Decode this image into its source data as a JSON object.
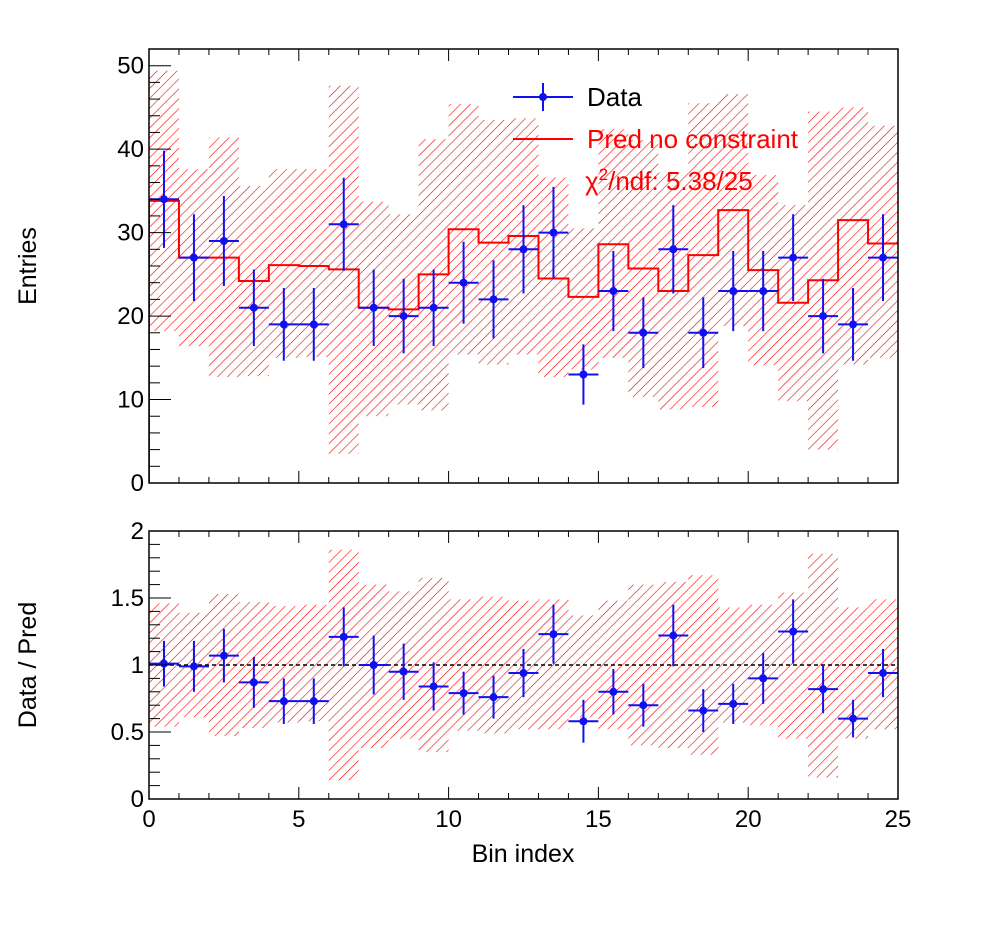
{
  "colors": {
    "data": "#1010f0",
    "pred": "#ff0000",
    "frame": "#000000",
    "ref_line": "#000000"
  },
  "legend": {
    "data_label": "Data",
    "pred_label": "Pred no constraint",
    "chi2_symbol": "χ",
    "chi2_sup": "2",
    "chi2_text": "/ndf: 5.38/25"
  },
  "chart_data": [
    {
      "type": "line",
      "xlabel": "",
      "ylabel": "Entries",
      "xlim": [
        0,
        25
      ],
      "ylim": [
        0,
        52
      ],
      "x_ticks": [
        0,
        5,
        10,
        15,
        20,
        25
      ],
      "y_ticks": [
        0,
        10,
        20,
        30,
        40,
        50
      ],
      "y_tick_labels": [
        "0",
        "10",
        "20",
        "30",
        "40",
        "50"
      ],
      "grid": false,
      "legend_position": "top-right",
      "series": [
        {
          "name": "Data",
          "style": "points with error bars",
          "x": [
            0.5,
            1.5,
            2.5,
            3.5,
            4.5,
            5.5,
            6.5,
            7.5,
            8.5,
            9.5,
            10.5,
            11.5,
            12.5,
            13.5,
            14.5,
            15.5,
            16.5,
            17.5,
            18.5,
            19.5,
            20.5,
            21.5,
            22.5,
            23.5,
            24.5
          ],
          "y": [
            34,
            27,
            29,
            21,
            19,
            19,
            31,
            21,
            20,
            21,
            24,
            22,
            28,
            30,
            13,
            23,
            18,
            28,
            18,
            23,
            23,
            27,
            20,
            19,
            27
          ],
          "yerr": [
            5.83,
            5.2,
            5.39,
            4.58,
            4.36,
            4.36,
            5.57,
            4.58,
            4.47,
            4.58,
            4.9,
            4.69,
            5.29,
            5.48,
            3.61,
            4.8,
            4.24,
            5.29,
            4.24,
            4.8,
            4.8,
            5.2,
            4.47,
            4.36,
            5.2
          ]
        },
        {
          "name": "Pred no constraint",
          "style": "step histogram with hatched band",
          "bin_edges": [
            0,
            1,
            2,
            3,
            4,
            5,
            6,
            7,
            8,
            9,
            10,
            11,
            12,
            13,
            14,
            15,
            16,
            17,
            18,
            19,
            20,
            21,
            22,
            23,
            24,
            25
          ],
          "values": [
            33.8,
            27,
            27,
            24.2,
            26.1,
            26,
            25.6,
            21,
            20.8,
            25,
            30.4,
            28.8,
            29.6,
            24.5,
            22.3,
            28.6,
            25.7,
            23,
            27.3,
            32.7,
            25.5,
            21.6,
            24.3,
            31.5,
            28.7
          ],
          "band_low": [
            18.2,
            16.4,
            12.7,
            12.8,
            15,
            15.1,
            3.5,
            8,
            9.4,
            8.7,
            15.4,
            14.2,
            15.4,
            12.7,
            13.6,
            15,
            10.3,
            8.8,
            9.1,
            18.8,
            14.1,
            9.8,
            4,
            14.2,
            15
          ],
          "band_high": [
            49.4,
            37.6,
            41.4,
            35.6,
            37.6,
            37.6,
            47.6,
            33.7,
            32.2,
            41.2,
            45.4,
            43.5,
            43.7,
            36.6,
            30.5,
            42.4,
            41.1,
            37.2,
            45.5,
            46.6,
            36.9,
            33.3,
            44.5,
            45,
            42.8
          ]
        }
      ]
    },
    {
      "type": "line",
      "xlabel": "Bin index",
      "ylabel": "Data / Pred",
      "xlim": [
        0,
        25
      ],
      "ylim": [
        0,
        2
      ],
      "x_ticks": [
        0,
        5,
        10,
        15,
        20,
        25
      ],
      "x_tick_labels": [
        "0",
        "5",
        "10",
        "15",
        "20",
        "25"
      ],
      "y_ticks": [
        0,
        0.5,
        1,
        1.5,
        2
      ],
      "y_tick_labels": [
        "0",
        "0.5",
        "1",
        "1.5",
        "2"
      ],
      "grid": false,
      "reference_line": 1,
      "series": [
        {
          "name": "Data / Pred",
          "style": "points with error bars",
          "x": [
            0.5,
            1.5,
            2.5,
            3.5,
            4.5,
            5.5,
            6.5,
            7.5,
            8.5,
            9.5,
            10.5,
            11.5,
            12.5,
            13.5,
            14.5,
            15.5,
            16.5,
            17.5,
            18.5,
            19.5,
            20.5,
            21.5,
            22.5,
            23.5,
            24.5
          ],
          "y": [
            1.01,
            0.99,
            1.07,
            0.87,
            0.73,
            0.73,
            1.21,
            1.0,
            0.95,
            0.84,
            0.79,
            0.76,
            0.94,
            1.23,
            0.58,
            0.8,
            0.7,
            1.22,
            0.66,
            0.71,
            0.9,
            1.25,
            0.82,
            0.6,
            0.94
          ],
          "yerr": [
            0.17,
            0.19,
            0.2,
            0.19,
            0.17,
            0.17,
            0.22,
            0.22,
            0.21,
            0.18,
            0.16,
            0.16,
            0.18,
            0.22,
            0.16,
            0.17,
            0.16,
            0.23,
            0.16,
            0.15,
            0.19,
            0.24,
            0.18,
            0.14,
            0.18
          ]
        },
        {
          "name": "Pred uncertainty",
          "style": "hatched band",
          "bin_edges": [
            0,
            1,
            2,
            3,
            4,
            5,
            6,
            7,
            8,
            9,
            10,
            11,
            12,
            13,
            14,
            15,
            16,
            17,
            18,
            19,
            20,
            21,
            22,
            23,
            24,
            25
          ],
          "band_low": [
            0.54,
            0.61,
            0.47,
            0.53,
            0.57,
            0.58,
            0.14,
            0.38,
            0.45,
            0.35,
            0.51,
            0.49,
            0.52,
            0.52,
            0.61,
            0.52,
            0.4,
            0.38,
            0.33,
            0.57,
            0.55,
            0.45,
            0.16,
            0.45,
            0.52
          ],
          "band_high": [
            1.46,
            1.39,
            1.53,
            1.47,
            1.44,
            1.45,
            1.86,
            1.6,
            1.55,
            1.65,
            1.49,
            1.51,
            1.48,
            1.49,
            1.37,
            1.48,
            1.6,
            1.62,
            1.67,
            1.43,
            1.45,
            1.54,
            1.83,
            1.43,
            1.49
          ]
        }
      ]
    }
  ]
}
